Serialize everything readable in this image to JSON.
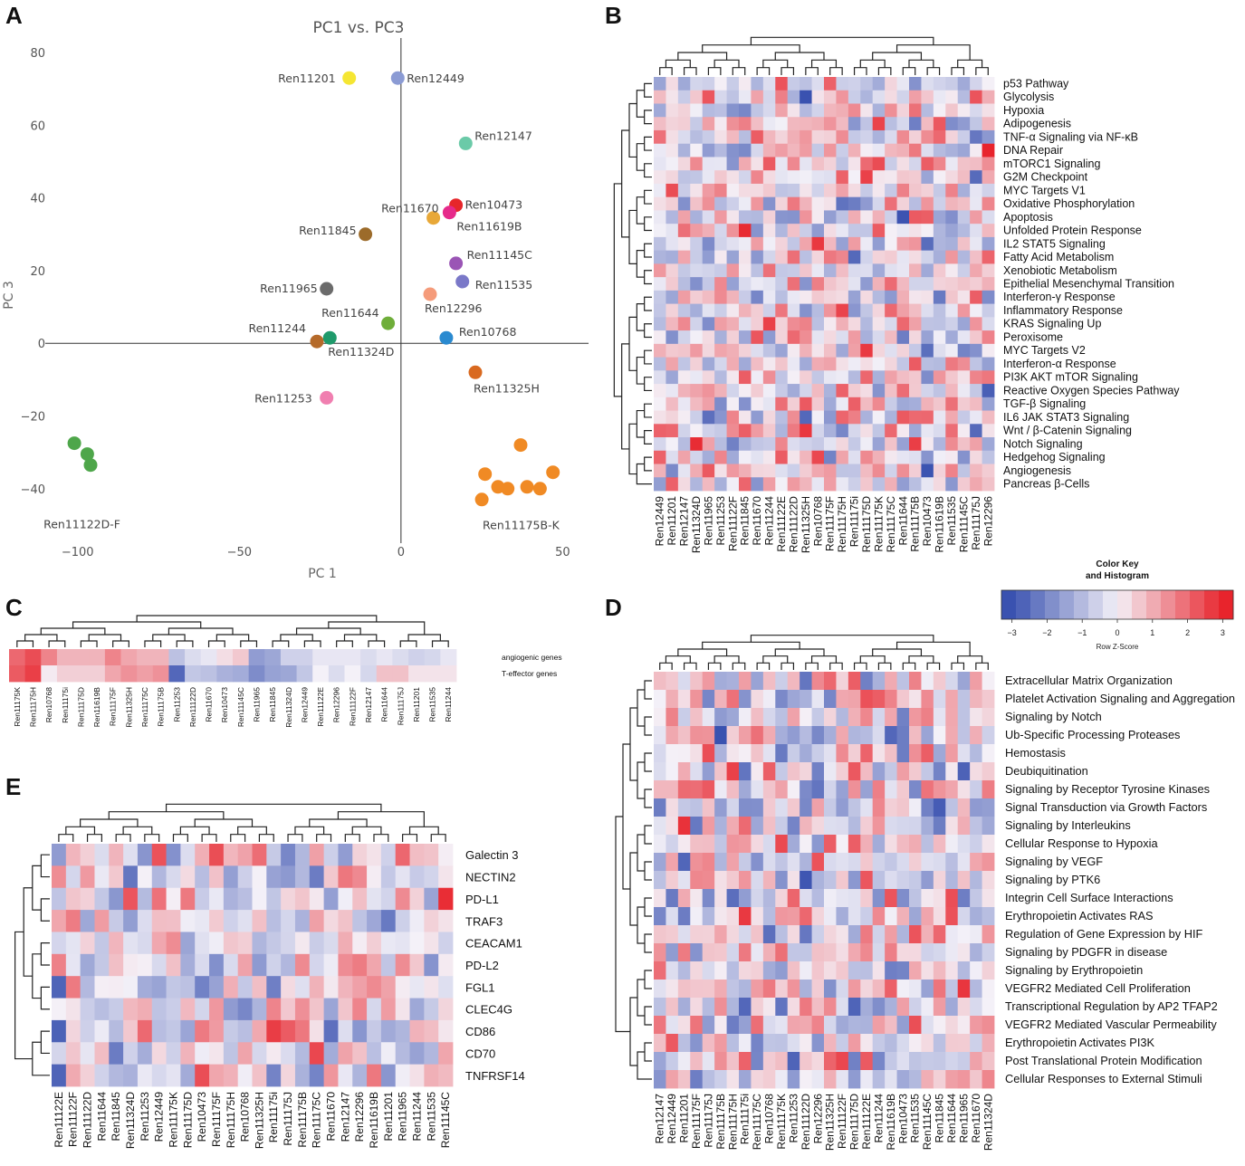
{
  "panel_letters": {
    "a": "A",
    "b": "B",
    "c": "C",
    "d": "D",
    "e": "E"
  },
  "chart_data": [
    {
      "id": "A",
      "type": "scatter",
      "title": "PC1 vs. PC3",
      "xlabel": "PC 1",
      "ylabel": "PC 3",
      "xlim": [
        -110,
        58
      ],
      "ylim": [
        -55,
        84
      ],
      "xticks": [
        -100,
        -50,
        0,
        50
      ],
      "xtick_labels": [
        "−100",
        "−50",
        "0",
        "50"
      ],
      "yticks": [
        -40,
        -20,
        0,
        20,
        40,
        60,
        80
      ],
      "ytick_labels": [
        "−40",
        "−20",
        "0",
        "20",
        "40",
        "60",
        "80"
      ],
      "points": [
        {
          "label": "Ren11201",
          "x": -16,
          "y": 73,
          "color": "#f5e633"
        },
        {
          "label": "Ren12449",
          "x": -1,
          "y": 73,
          "color": "#8b9bd4"
        },
        {
          "label": "Ren12147",
          "x": 20,
          "y": 55,
          "color": "#6bcaa8"
        },
        {
          "label": "Ren10473",
          "x": 17,
          "y": 38,
          "color": "#e6262a"
        },
        {
          "label": "Ren11670",
          "x": 10,
          "y": 34.5,
          "color": "#e8a838"
        },
        {
          "label": "Ren11619B",
          "x": 15,
          "y": 36,
          "color": "#e62a8a"
        },
        {
          "label": "Ren11845",
          "x": -11,
          "y": 30,
          "color": "#9c6b2a"
        },
        {
          "label": "Ren11145C",
          "x": 17,
          "y": 22,
          "color": "#9a55b5"
        },
        {
          "label": "Ren11965",
          "x": -23,
          "y": 15,
          "color": "#6b6b6b"
        },
        {
          "label": "Ren11535",
          "x": 19,
          "y": 17,
          "color": "#7a78c8"
        },
        {
          "label": "Ren12296",
          "x": 9,
          "y": 13.5,
          "color": "#f59b7a"
        },
        {
          "label": "Ren11644",
          "x": -4,
          "y": 5.5,
          "color": "#6fae3a"
        },
        {
          "label": "Ren11244",
          "x": -26,
          "y": 0.5,
          "color": "#b56a2a"
        },
        {
          "label": "Ren11324D",
          "x": -22,
          "y": 1.5,
          "color": "#1f9a6b"
        },
        {
          "label": "Ren10768",
          "x": 14,
          "y": 1.5,
          "color": "#2a8ad0"
        },
        {
          "label": "Ren11325H",
          "x": 23,
          "y": -8,
          "color": "#d9691f"
        },
        {
          "label": "Ren11253",
          "x": -23,
          "y": -15,
          "color": "#f07fb0"
        },
        {
          "label": "Ren11122D-F",
          "x": -101,
          "y": -27.5,
          "color": "#4ea64a"
        },
        {
          "label": "",
          "x": -97,
          "y": -30.5,
          "color": "#4ea64a"
        },
        {
          "label": "",
          "x": -96,
          "y": -33.5,
          "color": "#4ea64a"
        },
        {
          "label": "Ren11175B-K",
          "x": 37,
          "y": -28,
          "color": "#f08a24"
        },
        {
          "label": "",
          "x": 26,
          "y": -36,
          "color": "#f08a24"
        },
        {
          "label": "",
          "x": 47,
          "y": -35.5,
          "color": "#f08a24"
        },
        {
          "label": "",
          "x": 30,
          "y": -39.5,
          "color": "#f08a24"
        },
        {
          "label": "",
          "x": 33,
          "y": -40,
          "color": "#f08a24"
        },
        {
          "label": "",
          "x": 39,
          "y": -39.5,
          "color": "#f08a24"
        },
        {
          "label": "",
          "x": 43,
          "y": -40,
          "color": "#f08a24"
        },
        {
          "label": "",
          "x": 25,
          "y": -43,
          "color": "#f08a24"
        }
      ]
    },
    {
      "id": "B",
      "type": "heatmap",
      "rows": [
        "p53 Pathway",
        "Glycolysis",
        "Hypoxia",
        "Adipogenesis",
        "TNF-α Signaling via NF-κB",
        "DNA Repair",
        "mTORC1 Signaling",
        "G2M Checkpoint",
        "MYC Targets V1",
        "Oxidative Phosphorylation",
        "Apoptosis",
        "Unfolded Protein Response",
        "IL2 STAT5 Signaling",
        "Fatty Acid Metabolism",
        "Xenobiotic Metabolism",
        "Epithelial Mesenchymal Transition",
        "Interferon-γ Response",
        "Inflammatory Response",
        "KRAS Signaling Up",
        "Peroxisome",
        "MYC Targets V2",
        "Interferon-α Response",
        "PI3K AKT mTOR Signaling",
        "Reactive Oxygen Species Pathway",
        "TGF-β Signaling",
        "IL6 JAK STAT3 Signaling",
        "Wnt / β-Catenin Signaling",
        "Notch Signaling",
        "Hedgehog Signaling",
        "Angiogenesis",
        "Pancreas β-Cells"
      ],
      "columns": [
        "Ren12449",
        "Ren11201",
        "Ren12147",
        "Ren11324D",
        "Ren11965",
        "Ren11253",
        "Ren11122F",
        "Ren11845",
        "Ren11670",
        "Ren11244",
        "Ren11122E",
        "Ren11122D",
        "Ren11325H",
        "Ren10768",
        "Ren11175F",
        "Ren11175H",
        "Ren11175i",
        "Ren11175D",
        "Ren11175K",
        "Ren11175C",
        "Ren11644",
        "Ren11175B",
        "Ren10473",
        "Ren11619B",
        "Ren11535",
        "Ren11145C",
        "Ren11175J",
        "Ren12296"
      ],
      "seed": 11
    },
    {
      "id": "C",
      "type": "heatmap",
      "rows": [
        "angiogenic genes",
        "T-effector genes"
      ],
      "columns": [
        "Ren11175K",
        "Ren11175H",
        "Ren10768",
        "Ren11175i",
        "Ren11175D",
        "Ren11619B",
        "Ren11175F",
        "Ren11325H",
        "Ren11175C",
        "Ren11175B",
        "Ren11253",
        "Ren11122D",
        "Ren11670",
        "Ren10473",
        "Ren11145C",
        "Ren11965",
        "Ren11845",
        "Ren11324D",
        "Ren12449",
        "Ren11122E",
        "Ren12296",
        "Ren11122F",
        "Ren12147",
        "Ren11644",
        "Ren11175J",
        "Ren11201",
        "Ren11535",
        "Ren11244"
      ],
      "values": [
        [
          2.0,
          2.4,
          1.6,
          0.9,
          0.9,
          0.9,
          1.6,
          1.1,
          0.9,
          0.9,
          -0.9,
          -0.4,
          -0.2,
          0.3,
          0.6,
          -1.6,
          -1.4,
          -0.6,
          -0.6,
          -0.2,
          -0.2,
          -0.2,
          -0.4,
          -0.2,
          -0.4,
          -0.6,
          -0.5,
          -0.2
        ],
        [
          2.2,
          2.6,
          0.1,
          0.5,
          0.5,
          0.5,
          1.1,
          1.4,
          1.2,
          1.4,
          -2.6,
          -0.8,
          -0.9,
          -1.2,
          -1.3,
          -1.9,
          -1.5,
          -1.4,
          -0.8,
          0.0,
          -0.4,
          0.0,
          -0.5,
          0.7,
          0.7,
          0.2,
          0.2,
          0.2
        ]
      ]
    },
    {
      "id": "D",
      "type": "heatmap",
      "rows": [
        "Extracellular Matrix Organization",
        "Platelet Activation Signaling and Aggregation",
        "Signaling by Notch",
        "Ub-Specific Processing Proteases",
        "Hemostasis",
        "Deubiquitination",
        "Signaling by Receptor Tyrosine Kinases",
        "Signal Transduction via Growth Factors",
        "Signaling by Interleukins",
        "Cellular Response to Hypoxia",
        "Signaling by VEGF",
        "Signaling by PTK6",
        "Integrin Cell Surface Interactions",
        "Erythropoietin Activates RAS",
        "Regulation of Gene Expression by HIF",
        "Signaling by PDGFR in disease",
        "Signaling by Erythropoietin",
        "VEGFR2 Mediated Cell Proliferation",
        "Transcriptional Regulation by AP2 TFAP2",
        "VEGFR2 Mediated Vascular Permeability",
        "Erythropoietin Activates PI3K",
        "Post Translational Protein Modification",
        "Cellular Responses to External Stimuli"
      ],
      "columns": [
        "Ren12147",
        "Ren12449",
        "Ren11201",
        "Ren11175F",
        "Ren11175J",
        "Ren11175B",
        "Ren11175H",
        "Ren11175i",
        "Ren11175C",
        "Ren10768",
        "Ren11175K",
        "Ren11253",
        "Ren11122D",
        "Ren12296",
        "Ren11325H",
        "Ren11122F",
        "Ren11175D",
        "Ren11122E",
        "Ren11244",
        "Ren11619B",
        "Ren10473",
        "Ren11535",
        "Ren11145C",
        "Ren11845",
        "Ren11644",
        "Ren11965",
        "Ren11670",
        "Ren11324D"
      ],
      "seed": 29
    },
    {
      "id": "E",
      "type": "heatmap",
      "rows": [
        "Galectin 3",
        "NECTIN2",
        "PD-L1",
        "TRAF3",
        "CEACAM1",
        "PD-L2",
        "FGL1",
        "CLEC4G",
        "CD86",
        "CD70",
        "TNFRSF14"
      ],
      "columns": [
        "Ren11122E",
        "Ren11122F",
        "Ren11122D",
        "Ren11644",
        "Ren11845",
        "Ren11324D",
        "Ren11253",
        "Ren12449",
        "Ren11175K",
        "Ren11175D",
        "Ren10473",
        "Ren11175F",
        "Ren11175H",
        "Ren10768",
        "Ren11325H",
        "Ren11175i",
        "Ren11175J",
        "Ren11175B",
        "Ren11175C",
        "Ren11670",
        "Ren12147",
        "Ren12296",
        "Ren11619B",
        "Ren11201",
        "Ren11965",
        "Ren11244",
        "Ren11535",
        "Ren11145C"
      ],
      "seed": 47
    }
  ],
  "color_key": {
    "title_line1": "Color Key",
    "title_line2": "and Histogram",
    "xlabel": "Row Z-Score",
    "tick_labels": [
      "−3",
      "−2",
      "−1",
      "0",
      "1",
      "2",
      "3"
    ],
    "tick_values": [
      -3,
      -2,
      -1,
      0,
      1,
      2,
      3
    ],
    "range": [
      -3.3,
      3.3
    ],
    "colors": {
      "low": "#3a52b0",
      "mid": "#f4f1f8",
      "high": "#e8242c"
    }
  }
}
